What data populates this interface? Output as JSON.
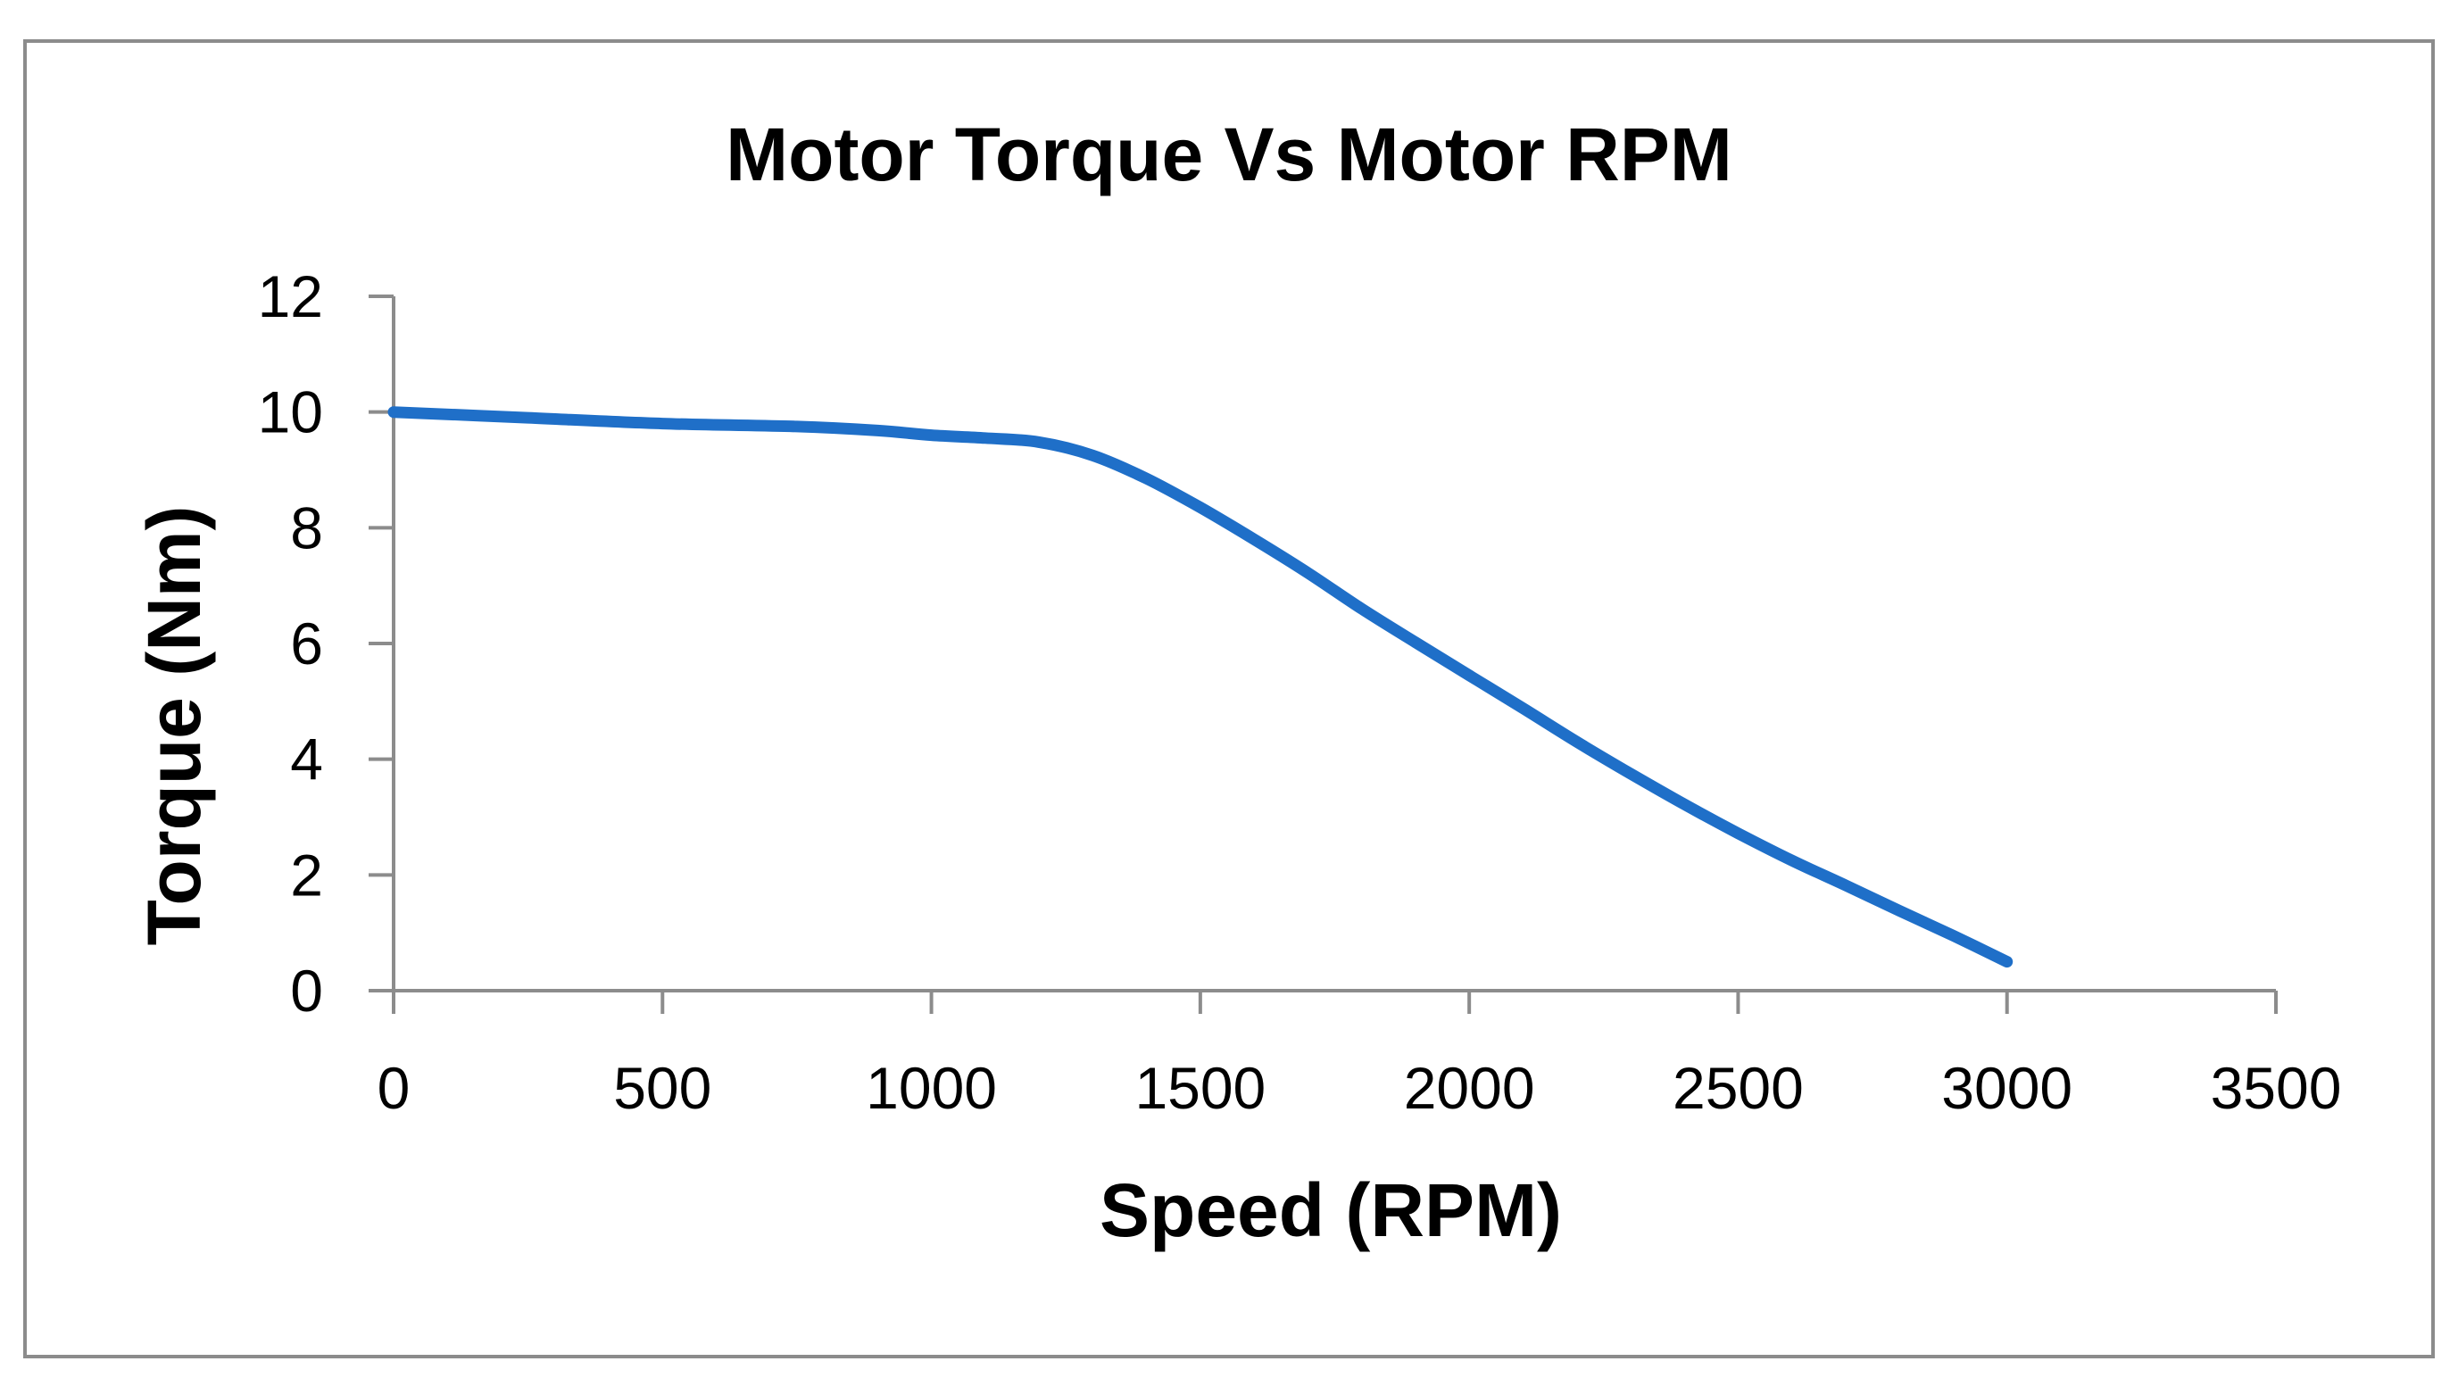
{
  "chart_data": {
    "type": "line",
    "title": "Motor Torque Vs Motor RPM",
    "xlabel": "Speed (RPM)",
    "ylabel": "Torque (Nm)",
    "xlim": [
      0,
      3500
    ],
    "ylim": [
      0,
      12
    ],
    "xticks": [
      0,
      500,
      1000,
      1500,
      2000,
      2500,
      3000,
      3500
    ],
    "yticks": [
      0,
      2,
      4,
      6,
      8,
      10,
      12
    ],
    "grid": false,
    "legend": "none",
    "line_color": "#1F6FC8",
    "series": [
      {
        "name": "Torque",
        "x": [
          0,
          250,
          500,
          750,
          900,
          1000,
          1100,
          1200,
          1300,
          1400,
          1500,
          1600,
          1700,
          1800,
          1900,
          2000,
          2100,
          2200,
          2300,
          2400,
          2500,
          2600,
          2700,
          2800,
          2900,
          3000
        ],
        "values": [
          10.0,
          9.9,
          9.8,
          9.75,
          9.68,
          9.6,
          9.55,
          9.48,
          9.25,
          8.85,
          8.35,
          7.8,
          7.22,
          6.6,
          6.02,
          5.45,
          4.88,
          4.3,
          3.75,
          3.22,
          2.72,
          2.25,
          1.82,
          1.38,
          0.95,
          0.5
        ]
      }
    ]
  }
}
